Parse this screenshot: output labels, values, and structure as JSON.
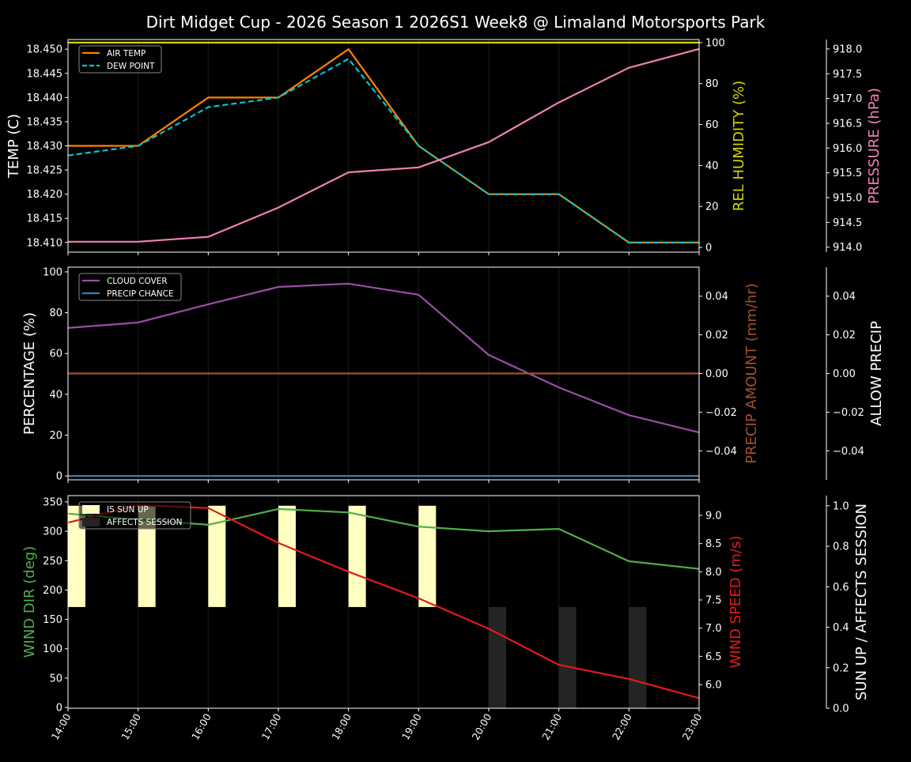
{
  "title": "Dirt Midget Cup - 2026 Season 1 2026S1 Week8 @ Limaland Motorsports Park",
  "chart_data": [
    {
      "type": "line",
      "x": [
        "14:00",
        "15:00",
        "16:00",
        "17:00",
        "18:00",
        "19:00",
        "20:00",
        "21:00",
        "22:00",
        "23:00"
      ],
      "ylabel": "TEMP (C)",
      "ylim": [
        18.408,
        18.452
      ],
      "yticks": [
        18.41,
        18.415,
        18.42,
        18.425,
        18.43,
        18.435,
        18.44,
        18.445,
        18.45
      ],
      "legend": "top-left",
      "series": [
        {
          "name": "AIR TEMP",
          "axis": "left",
          "color": "#ff8000",
          "style": "solid",
          "values": [
            18.43,
            18.43,
            18.44,
            18.44,
            18.45,
            18.43,
            18.42,
            18.42,
            18.41,
            18.41
          ]
        },
        {
          "name": "DEW POINT",
          "axis": "left",
          "color": "#00c8c8",
          "style": "dashed",
          "values": [
            18.428,
            18.43,
            18.438,
            18.44,
            18.448,
            18.43,
            18.42,
            18.42,
            18.41,
            18.41
          ]
        },
        {
          "axis": "right1",
          "color": "#d4d400",
          "style": "solid",
          "values": [
            100,
            100,
            100,
            100,
            100,
            100,
            100,
            100,
            100,
            100
          ]
        },
        {
          "axis": "right2",
          "color": "#f080b8",
          "style": "solid",
          "values": [
            914.11,
            914.11,
            914.21,
            914.8,
            915.51,
            915.61,
            916.12,
            916.92,
            917.62,
            918.0
          ]
        }
      ],
      "right1": {
        "label": "REL HUMIDITY (%)",
        "color": "#d4d400",
        "ylim": [
          -2.3,
          101.5
        ],
        "ticks": [
          0,
          20,
          40,
          60,
          80,
          100
        ],
        "tick_labels": [
          "0",
          "20",
          "40",
          "60",
          "80",
          "100"
        ]
      },
      "right2": {
        "label": "PRESSURE (hPa)",
        "color": "#f080b8",
        "ylim": [
          913.9,
          918.19
        ],
        "ticks": [
          914.0,
          914.5,
          915.0,
          915.5,
          916.0,
          916.5,
          917.0,
          917.5,
          918.0
        ],
        "tick_labels": [
          "914.0",
          "914.5",
          "915.0",
          "915.5",
          "916.0",
          "916.5",
          "917.0",
          "917.5",
          "918.0"
        ]
      },
      "left_tick_labels": [
        "18.410",
        "18.415",
        "18.420",
        "18.425",
        "18.430",
        "18.435",
        "18.440",
        "18.445",
        "18.450"
      ],
      "label_color": "#ffffff"
    },
    {
      "type": "line",
      "x": [
        "14:00",
        "15:00",
        "16:00",
        "17:00",
        "18:00",
        "19:00",
        "20:00",
        "21:00",
        "22:00",
        "23:00"
      ],
      "ylabel": "PERCENTAGE (%)",
      "ylim": [
        -1.9,
        102.3
      ],
      "yticks": [
        0,
        20,
        40,
        60,
        80,
        100
      ],
      "left_tick_labels": [
        "0",
        "20",
        "40",
        "60",
        "80",
        "100"
      ],
      "legend": "top-left",
      "series": [
        {
          "name": "CLOUD COVER",
          "axis": "left",
          "color": "#984ea3",
          "style": "solid",
          "values": [
            72.5,
            75.2,
            84.1,
            92.6,
            94.2,
            88.8,
            59.3,
            43.4,
            29.8,
            21.3
          ]
        },
        {
          "name": "PRECIP CHANCE",
          "axis": "left",
          "color": "#377eb8",
          "style": "solid",
          "values": [
            0,
            0,
            0,
            0,
            0,
            0,
            0,
            0,
            0,
            0
          ]
        },
        {
          "axis": "right1",
          "color": "#a0522d",
          "style": "solid",
          "values": [
            0,
            0,
            0,
            0,
            0,
            0,
            0,
            0,
            0,
            0
          ]
        }
      ],
      "right1": {
        "label": "PRECIP AMOUNT (mm/hr)",
        "color": "#a0522d",
        "ylim": [
          -0.055,
          0.055
        ],
        "ticks": [
          -0.04,
          -0.02,
          0,
          0.02,
          0.04
        ],
        "tick_labels": [
          "−0.04",
          "−0.02",
          "0.00",
          "0.02",
          "0.04"
        ]
      },
      "right2": {
        "label": "ALLOW PRECIP",
        "color": "#ffffff",
        "ylim": [
          -0.055,
          0.055
        ],
        "ticks": [
          -0.04,
          -0.02,
          0,
          0.02,
          0.04
        ],
        "tick_labels": [
          "−0.04",
          "−0.02",
          "0.00",
          "0.02",
          "0.04"
        ]
      },
      "label_color": "#ffffff"
    },
    {
      "type": "line",
      "x": [
        "14:00",
        "15:00",
        "16:00",
        "17:00",
        "18:00",
        "19:00",
        "20:00",
        "21:00",
        "22:00",
        "23:00"
      ],
      "ylabel": "WIND DIR (deg)",
      "ylim": [
        -1.3,
        360.7
      ],
      "yticks": [
        0,
        50,
        100,
        150,
        200,
        250,
        300,
        350
      ],
      "left_tick_labels": [
        "0",
        "50",
        "100",
        "150",
        "200",
        "250",
        "300",
        "350"
      ],
      "legend": "top-left",
      "bars": [
        {
          "name": "IS SUN UP",
          "color": "#ffffc0",
          "values": [
            1,
            1,
            1,
            1,
            1,
            1,
            0,
            0,
            0,
            0
          ]
        },
        {
          "name": "AFFECTS SESSION",
          "color": "#242424",
          "values": [
            0,
            0,
            0,
            0,
            0,
            0,
            1,
            1,
            1,
            0
          ]
        }
      ],
      "series": [
        {
          "axis": "left",
          "color": "#4daf4a",
          "style": "solid",
          "values": [
            330,
            320,
            311,
            338,
            332,
            308,
            300,
            304,
            249,
            236
          ]
        },
        {
          "axis": "right1",
          "color": "#e41a1c",
          "style": "solid",
          "values": [
            8.87,
            9.18,
            9.13,
            8.51,
            8.0,
            7.53,
            6.99,
            6.35,
            6.1,
            5.76
          ]
        }
      ],
      "right1": {
        "label": "WIND SPEED (m/s)",
        "color": "#e41a1c",
        "ylim": [
          5.58,
          9.35
        ],
        "ticks": [
          6.0,
          6.5,
          7.0,
          7.5,
          8.0,
          8.5,
          9.0
        ],
        "tick_labels": [
          "6.0",
          "6.5",
          "7.0",
          "7.5",
          "8.0",
          "8.5",
          "9.0"
        ]
      },
      "right2": {
        "label": "SUN UP / AFFECTS SESSION",
        "color": "#ffffff",
        "ylim": [
          0,
          1.05
        ],
        "ticks": [
          0,
          0.2,
          0.4,
          0.6,
          0.8,
          1.0
        ],
        "tick_labels": [
          "0.0",
          "0.2",
          "0.4",
          "0.6",
          "0.8",
          "1.0"
        ]
      },
      "label_color": "#4daf4a"
    }
  ]
}
